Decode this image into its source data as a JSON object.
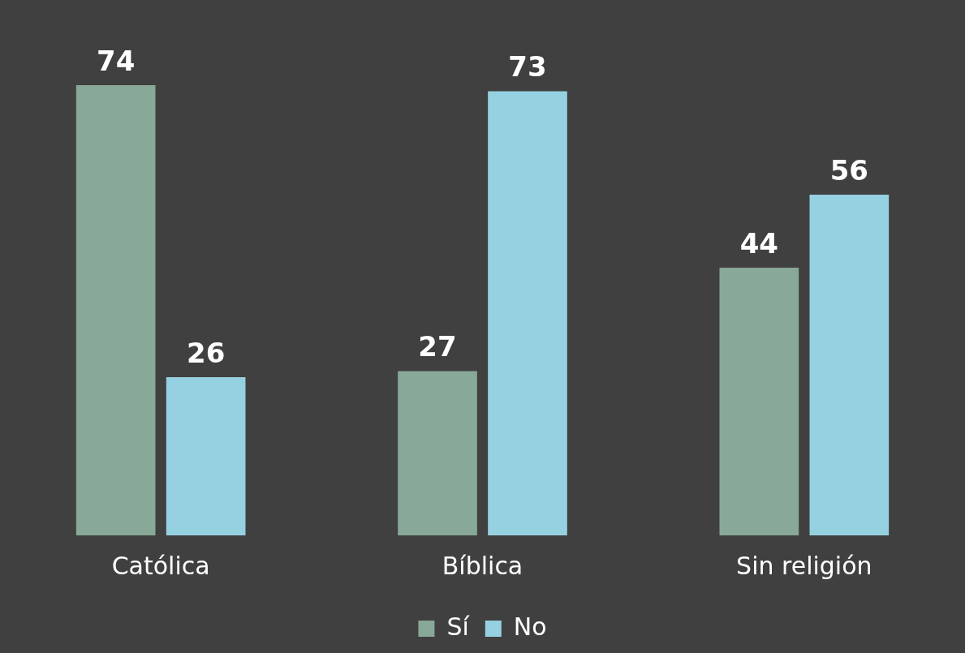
{
  "chart_data": {
    "type": "bar",
    "categories": [
      "Católica",
      "Bíblica",
      "Sin religión"
    ],
    "series": [
      {
        "name": "Sí",
        "color": "#88a898",
        "values": [
          74,
          27,
          44
        ]
      },
      {
        "name": "No",
        "color": "#96d1e2",
        "values": [
          26,
          73,
          56
        ]
      }
    ],
    "data_labels": true,
    "legend": "bottom",
    "grid": false
  }
}
